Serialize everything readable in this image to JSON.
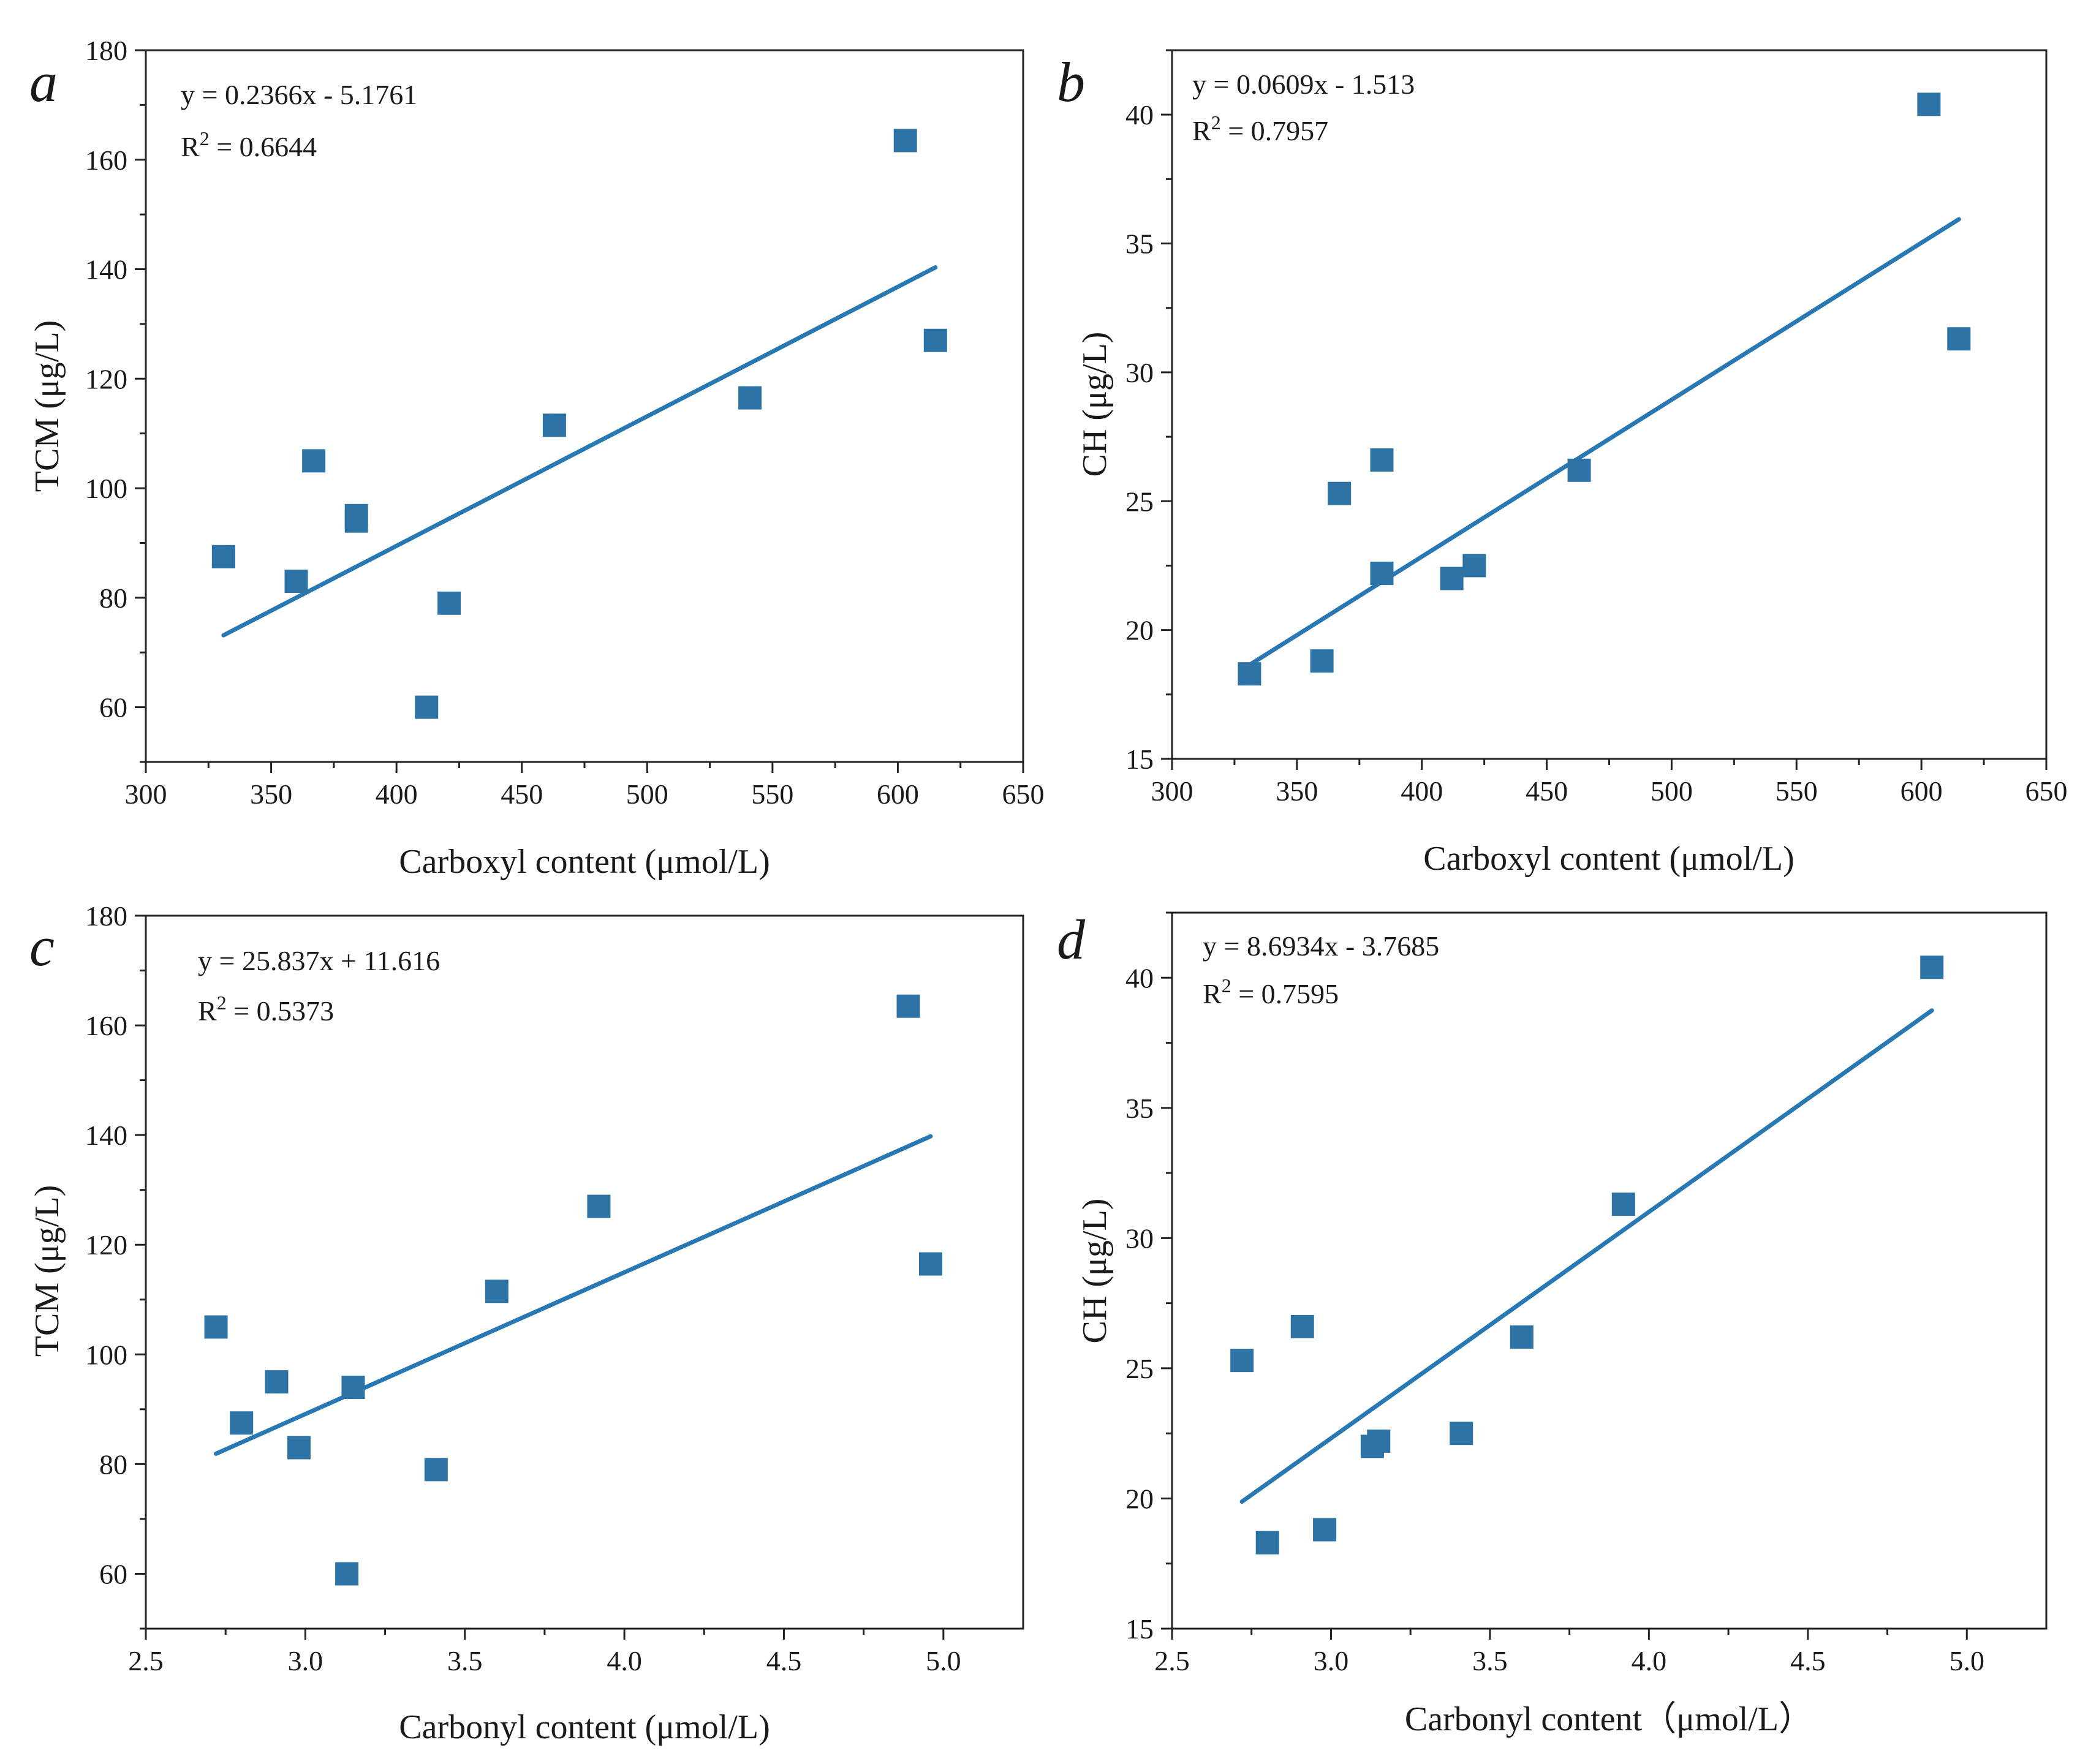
{
  "chart_data": [
    {
      "panel": "a",
      "type": "scatter",
      "xlabel": "Carboxyl content (μmol/L)",
      "ylabel": "TCM (μg/L)",
      "xlim": [
        300,
        650
      ],
      "ylim": [
        50,
        180
      ],
      "xticks": [
        300,
        350,
        400,
        450,
        500,
        550,
        600,
        650
      ],
      "yticks": [
        60,
        80,
        100,
        120,
        140,
        160,
        180
      ],
      "equation": "y = 0.2366x - 5.1761",
      "r2_label": "R",
      "r2_value": " = 0.6644",
      "fit": {
        "slope": 0.2366,
        "intercept": -5.1761,
        "x_range": [
          331,
          615
        ]
      },
      "series": [
        {
          "name": "data",
          "x": [
            331,
            360,
            367,
            384,
            384,
            412,
            421,
            463,
            541,
            603,
            615
          ],
          "y": [
            87.5,
            83,
            105,
            95,
            94,
            60,
            79,
            111.5,
            116.5,
            163.5,
            127
          ]
        }
      ]
    },
    {
      "panel": "b",
      "type": "scatter",
      "xlabel": "Carboxyl content (μmol/L)",
      "ylabel": "CH (μg/L)",
      "xlim": [
        300,
        650
      ],
      "ylim": [
        15,
        42.5
      ],
      "xticks": [
        300,
        350,
        400,
        450,
        500,
        550,
        600,
        650
      ],
      "yticks": [
        15,
        20,
        25,
        30,
        35,
        40
      ],
      "equation": "y = 0.0609x - 1.513",
      "r2_label": "R",
      "r2_value": " = 0.7957",
      "fit": {
        "slope": 0.0609,
        "intercept": -1.513,
        "x_range": [
          331,
          615
        ]
      },
      "series": [
        {
          "name": "data",
          "x": [
            331,
            360,
            367,
            384,
            384,
            412,
            421,
            463,
            603,
            615
          ],
          "y": [
            18.3,
            18.8,
            25.3,
            26.6,
            22.2,
            22,
            22.5,
            26.2,
            40.4,
            31.3
          ]
        }
      ]
    },
    {
      "panel": "c",
      "type": "scatter",
      "xlabel": "Carbonyl content (μmol/L)",
      "ylabel": "TCM (μg/L)",
      "xlim": [
        2.5,
        5.25
      ],
      "ylim": [
        50,
        180
      ],
      "xticks": [
        2.5,
        3.0,
        3.5,
        4.0,
        4.5,
        5.0
      ],
      "xtick_labels": [
        "2.5",
        "3.0",
        "3.5",
        "4.0",
        "4.5",
        "5.0"
      ],
      "yticks": [
        60,
        80,
        100,
        120,
        140,
        160,
        180
      ],
      "equation": "y = 25.837x + 11.616",
      "r2_label": "R",
      "r2_value": " = 0.5373",
      "fit": {
        "slope": 25.837,
        "intercept": 11.616,
        "x_range": [
          2.72,
          4.96
        ]
      },
      "series": [
        {
          "name": "data",
          "x": [
            2.72,
            2.8,
            2.91,
            2.98,
            3.13,
            3.15,
            3.41,
            3.6,
            3.92,
            4.89,
            4.96
          ],
          "y": [
            105,
            87.5,
            95,
            83,
            60,
            94,
            79,
            111.5,
            127,
            163.5,
            116.5
          ]
        }
      ]
    },
    {
      "panel": "d",
      "type": "scatter",
      "xlabel": "Carbonyl content（μmol/L）",
      "ylabel": "CH (μg/L)",
      "xlim": [
        2.5,
        5.25
      ],
      "ylim": [
        15,
        42.5
      ],
      "xticks": [
        2.5,
        3.0,
        3.5,
        4.0,
        4.5,
        5.0
      ],
      "xtick_labels": [
        "2.5",
        "3.0",
        "3.5",
        "4.0",
        "4.5",
        "5.0"
      ],
      "yticks": [
        15,
        20,
        25,
        30,
        35,
        40
      ],
      "equation": "y = 8.6934x - 3.7685",
      "r2_label": "R",
      "r2_value": " = 0.7595",
      "fit": {
        "slope": 8.6934,
        "intercept": -3.7685,
        "x_range": [
          2.72,
          4.89
        ]
      },
      "series": [
        {
          "name": "data",
          "x": [
            2.72,
            2.8,
            2.91,
            2.98,
            3.13,
            3.15,
            3.41,
            3.6,
            3.92,
            4.89
          ],
          "y": [
            25.3,
            18.3,
            26.6,
            18.8,
            22,
            22.2,
            22.5,
            26.2,
            31.3,
            40.4
          ]
        }
      ]
    }
  ],
  "style": {
    "marker_color": "#2e73a5",
    "fit_color": "#2878b4",
    "axis_color": "#222222"
  }
}
